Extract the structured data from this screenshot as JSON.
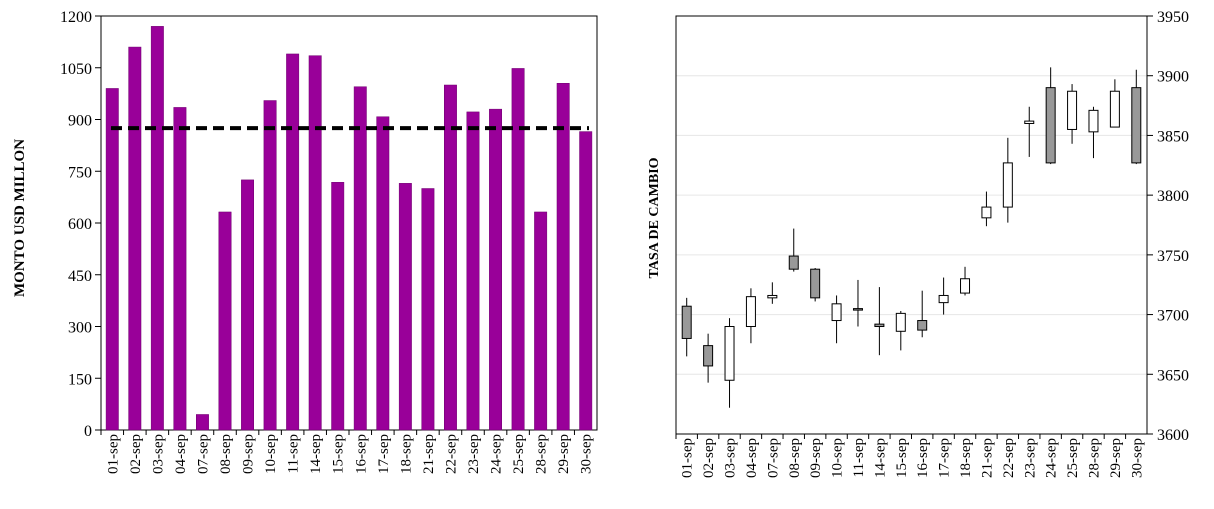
{
  "colors": {
    "bar": "#990099",
    "bar_edge": "#6e006e",
    "reference_line": "#000000",
    "candle_down": "#999999",
    "candle_up": "#ffffff",
    "grid": "#e6e6e6"
  },
  "chart_data": [
    {
      "type": "bar",
      "ylabel": "MONTO USD MILLON",
      "ylim": [
        0,
        1200
      ],
      "yticks": [
        0,
        150,
        300,
        450,
        600,
        750,
        900,
        1050,
        1200
      ],
      "categories": [
        "01-sep",
        "02-sep",
        "03-sep",
        "04-sep",
        "07-sep",
        "08-sep",
        "09-sep",
        "10-sep",
        "11-sep",
        "14-sep",
        "15-sep",
        "16-sep",
        "17-sep",
        "18-sep",
        "21-sep",
        "22-sep",
        "23-sep",
        "24-sep",
        "25-sep",
        "28-sep",
        "29-sep",
        "30-sep"
      ],
      "values": [
        990,
        1110,
        1170,
        935,
        45,
        632,
        725,
        955,
        1090,
        1085,
        718,
        995,
        908,
        715,
        700,
        1000,
        922,
        930,
        1048,
        632,
        1005,
        865
      ],
      "reference_line": 875,
      "grid": false
    },
    {
      "type": "candlestick",
      "ylabel": "TASA DE CAMBIO",
      "ylim": [
        3600,
        3950
      ],
      "yticks": [
        3600,
        3650,
        3700,
        3750,
        3800,
        3850,
        3900,
        3950
      ],
      "y_axis_side": "right",
      "grid": true,
      "categories": [
        "01-sep",
        "02-sep",
        "03-sep",
        "04-sep",
        "07-sep",
        "08-sep",
        "09-sep",
        "10-sep",
        "11-sep",
        "14-sep",
        "15-sep",
        "16-sep",
        "17-sep",
        "18-sep",
        "21-sep",
        "22-sep",
        "23-sep",
        "24-sep",
        "25-sep",
        "28-sep",
        "29-sep",
        "30-sep"
      ],
      "ohlc": [
        {
          "open": 3707,
          "high": 3714,
          "low": 3665,
          "close": 3680
        },
        {
          "open": 3674,
          "high": 3684,
          "low": 3643,
          "close": 3657
        },
        {
          "open": 3645,
          "high": 3697,
          "low": 3622,
          "close": 3690
        },
        {
          "open": 3690,
          "high": 3722,
          "low": 3676,
          "close": 3715
        },
        {
          "open": 3714,
          "high": 3727,
          "low": 3709,
          "close": 3716
        },
        {
          "open": 3749,
          "high": 3772,
          "low": 3736,
          "close": 3738
        },
        {
          "open": 3738,
          "high": 3739,
          "low": 3711,
          "close": 3714
        },
        {
          "open": 3695,
          "high": 3716,
          "low": 3676,
          "close": 3709
        },
        {
          "open": 3705,
          "high": 3729,
          "low": 3690,
          "close": 3704
        },
        {
          "open": 3692,
          "high": 3723,
          "low": 3666,
          "close": 3690
        },
        {
          "open": 3686,
          "high": 3703,
          "low": 3670,
          "close": 3701
        },
        {
          "open": 3695,
          "high": 3720,
          "low": 3681,
          "close": 3687
        },
        {
          "open": 3710,
          "high": 3731,
          "low": 3700,
          "close": 3716
        },
        {
          "open": 3718,
          "high": 3740,
          "low": 3716,
          "close": 3730
        },
        {
          "open": 3781,
          "high": 3803,
          "low": 3774,
          "close": 3790
        },
        {
          "open": 3790,
          "high": 3848,
          "low": 3777,
          "close": 3827
        },
        {
          "open": 3860,
          "high": 3874,
          "low": 3832,
          "close": 3862
        },
        {
          "open": 3890,
          "high": 3907,
          "low": 3826,
          "close": 3827
        },
        {
          "open": 3855,
          "high": 3893,
          "low": 3843,
          "close": 3887
        },
        {
          "open": 3853,
          "high": 3874,
          "low": 3831,
          "close": 3871
        },
        {
          "open": 3857,
          "high": 3897,
          "low": 3857,
          "close": 3887
        },
        {
          "open": 3890,
          "high": 3905,
          "low": 3826,
          "close": 3827
        }
      ]
    }
  ]
}
